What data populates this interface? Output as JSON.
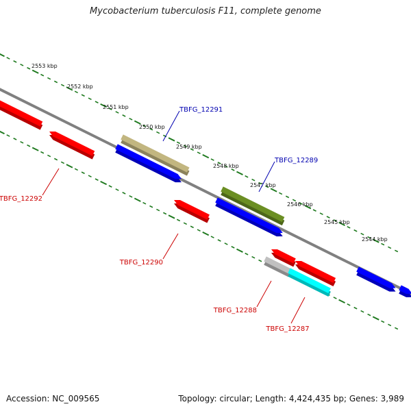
{
  "map": {
    "title": "Mycobacterium tuberculosis F11, complete genome",
    "backbone_color": "#808080",
    "tick_color": "#1f7a1f"
  },
  "footer": {
    "accession": "Accession: NC_009565",
    "topology": "Topology: circular; Length: 4,424,435 bp; Genes: 3,989"
  },
  "ruler_labels": [
    "2553 kbp",
    "2552 kbp",
    "2551 kbp",
    "2550 kbp",
    "2549 kbp",
    "2548 kbp",
    "2547 kbp",
    "2546 kbp",
    "2545 kbp",
    "2544 kbp"
  ],
  "genes": [
    {
      "id": "plus-1",
      "color": "#0000ff"
    },
    {
      "id": "TBFG_12291",
      "color": "#c2b680"
    },
    {
      "id": "TBFG_12289",
      "color": "#6b8e23"
    },
    {
      "id": "plus-4",
      "color": "#0000ff"
    },
    {
      "id": "plus-5",
      "color": "#0000ff"
    },
    {
      "id": "plus-6",
      "color": "#0000ff"
    },
    {
      "id": "minus-1",
      "color": "#ff0000"
    },
    {
      "id": "TBFG_12292",
      "color": "#ff0000"
    },
    {
      "id": "TBFG_12290",
      "color": "#ff0000"
    },
    {
      "id": "minus-4",
      "color": "#ff0000"
    },
    {
      "id": "minus-5",
      "color": "#ff0000"
    },
    {
      "id": "TBFG_12288",
      "color": "#c0c0c0"
    },
    {
      "id": "TBFG_12287",
      "color": "#00ffff"
    }
  ],
  "gene_labels": {
    "TBFG_12291": "TBFG_12291",
    "TBFG_12289": "TBFG_12289",
    "TBFG_12292": "TBFG_12292",
    "TBFG_12290": "TBFG_12290",
    "TBFG_12288": "TBFG_12288",
    "TBFG_12287": "TBFG_12287"
  },
  "strand_label_colors": {
    "plus": "#0000b0",
    "minus": "#cc0000"
  }
}
